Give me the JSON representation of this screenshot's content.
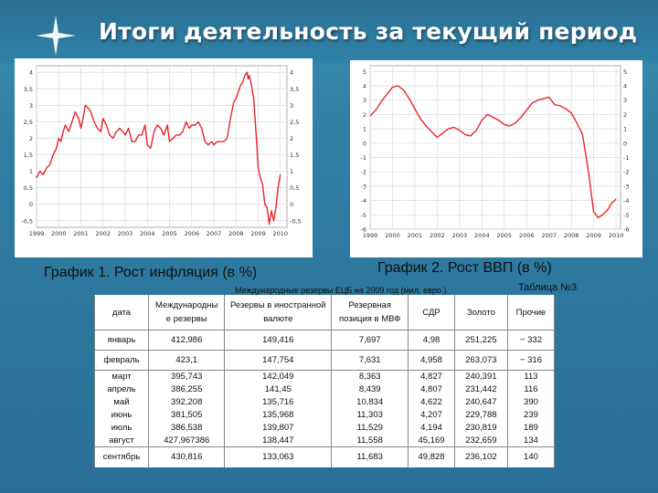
{
  "slide": {
    "title": "Итоги деятельность за текущий период",
    "colors": {
      "background": "#2f7ea3",
      "line": "#e8262a"
    }
  },
  "chart_data": [
    {
      "type": "line",
      "caption": "График 1. Рост инфляция (в %)",
      "x_tick_labels": [
        "1999",
        "2000",
        "2001",
        "2002",
        "2003",
        "2004",
        "2005",
        "2006",
        "2007",
        "2008",
        "2009",
        "2010"
      ],
      "y_tick_labels": [
        "4",
        "3,5",
        "3",
        "2,5",
        "2",
        "1,5",
        "1",
        "0,5",
        "0",
        "-0,5"
      ],
      "ylim": [
        -0.7,
        4.2
      ],
      "xlim": [
        1999,
        2010.3
      ],
      "grid": true,
      "series": [
        {
          "x": [
            1999.0,
            1999.15,
            1999.3,
            1999.45,
            1999.6,
            1999.75,
            1999.9,
            2000.0,
            2000.1,
            2000.2,
            2000.3,
            2000.45,
            2000.6,
            2000.75,
            2000.9,
            2001.0,
            2001.1,
            2001.2,
            2001.35,
            2001.45,
            2001.6,
            2001.75,
            2001.9,
            2002.0,
            2002.15,
            2002.3,
            2002.45,
            2002.6,
            2002.75,
            2002.9,
            2003.0,
            2003.15,
            2003.3,
            2003.45,
            2003.6,
            2003.75,
            2003.9,
            2004.0,
            2004.15,
            2004.3,
            2004.45,
            2004.6,
            2004.75,
            2004.9,
            2005.0,
            2005.15,
            2005.3,
            2005.45,
            2005.6,
            2005.75,
            2005.9,
            2006.0,
            2006.15,
            2006.3,
            2006.45,
            2006.6,
            2006.75,
            2006.9,
            2007.0,
            2007.15,
            2007.3,
            2007.45,
            2007.6,
            2007.75,
            2007.9,
            2008.0,
            2008.1,
            2008.2,
            2008.3,
            2008.4,
            2008.5,
            2008.55,
            2008.6,
            2008.7,
            2008.8,
            2008.9,
            2009.0,
            2009.1,
            2009.2,
            2009.3,
            2009.4,
            2009.5,
            2009.6,
            2009.7,
            2009.8,
            2009.9,
            2010.0
          ],
          "y": [
            0.8,
            1.0,
            0.9,
            1.1,
            1.2,
            1.5,
            1.7,
            2.0,
            1.9,
            2.2,
            2.4,
            2.2,
            2.5,
            2.8,
            2.6,
            2.3,
            2.6,
            3.0,
            2.9,
            2.8,
            2.5,
            2.3,
            2.2,
            2.6,
            2.4,
            2.1,
            2.0,
            2.2,
            2.3,
            2.2,
            2.1,
            2.3,
            1.9,
            1.9,
            2.1,
            2.1,
            2.4,
            1.8,
            1.7,
            2.2,
            2.4,
            2.3,
            2.1,
            2.4,
            1.9,
            2.0,
            2.1,
            2.1,
            2.2,
            2.5,
            2.3,
            2.4,
            2.4,
            2.5,
            2.3,
            1.9,
            1.8,
            1.9,
            1.8,
            1.9,
            1.9,
            1.9,
            2.0,
            2.6,
            3.1,
            3.2,
            3.4,
            3.6,
            3.7,
            3.9,
            4.0,
            3.8,
            3.9,
            3.6,
            3.2,
            2.2,
            1.1,
            0.8,
            0.6,
            0.0,
            -0.1,
            -0.6,
            -0.2,
            -0.5,
            -0.1,
            0.5,
            0.9
          ]
        }
      ]
    },
    {
      "type": "line",
      "caption": "График 2. Рост ВВП (в %)",
      "x_tick_labels": [
        "1999",
        "2000",
        "2001",
        "2002",
        "2003",
        "2004",
        "2005",
        "2006",
        "2007",
        "2008",
        "2009",
        "2010"
      ],
      "y_tick_labels": [
        "5",
        "4",
        "3",
        "2",
        "1",
        "0",
        "-1",
        "-2",
        "-3",
        "-4",
        "-5",
        "-6"
      ],
      "ylim": [
        -6,
        5.4
      ],
      "xlim": [
        1999,
        2010.2
      ],
      "grid": true,
      "series": [
        {
          "x": [
            1999.0,
            1999.25,
            1999.5,
            1999.75,
            2000.0,
            2000.25,
            2000.5,
            2000.75,
            2001.0,
            2001.25,
            2001.5,
            2001.75,
            2002.0,
            2002.25,
            2002.5,
            2002.75,
            2003.0,
            2003.25,
            2003.5,
            2003.75,
            2004.0,
            2004.25,
            2004.5,
            2004.75,
            2005.0,
            2005.25,
            2005.5,
            2005.75,
            2006.0,
            2006.25,
            2006.5,
            2006.75,
            2007.0,
            2007.25,
            2007.5,
            2007.75,
            2008.0,
            2008.25,
            2008.5,
            2008.75,
            2009.0,
            2009.2,
            2009.4,
            2009.6,
            2009.8,
            2010.0
          ],
          "y": [
            1.9,
            2.3,
            2.9,
            3.4,
            3.9,
            4.0,
            3.7,
            3.1,
            2.4,
            1.7,
            1.2,
            0.8,
            0.4,
            0.7,
            1.0,
            1.1,
            0.9,
            0.6,
            0.5,
            0.9,
            1.6,
            2.0,
            1.8,
            1.6,
            1.3,
            1.2,
            1.4,
            1.8,
            2.3,
            2.8,
            3.0,
            3.1,
            3.2,
            2.7,
            2.6,
            2.4,
            2.1,
            1.4,
            0.6,
            -1.8,
            -4.8,
            -5.2,
            -5.0,
            -4.7,
            -4.2,
            -3.9
          ]
        }
      ]
    },
    {
      "type": "table",
      "title": "Международные резервы ЕЦБ на 2009 год (мил. евро )",
      "table_number": "Таблица №3",
      "columns": [
        [
          "дата"
        ],
        [
          "Международны",
          "е резервы"
        ],
        [
          "Резервы в иностранной",
          "валюте"
        ],
        [
          "Резервная",
          "позиция в МВФ"
        ],
        [
          "СДР"
        ],
        [
          "Золото"
        ],
        [
          "Прочие"
        ]
      ],
      "groups": [
        [
          [
            "январь",
            "412,986",
            "149,416",
            "7,697",
            "4,98",
            "251,225",
            "− 332"
          ]
        ],
        [
          [
            "февраль",
            "423,1",
            "147,754",
            "7,631",
            "4,958",
            "263,073",
            "− 316"
          ]
        ],
        [
          [
            "март",
            "395,743",
            "142,049",
            "8,363",
            "4,827",
            "240,391",
            "113"
          ],
          [
            "апрель",
            "386,255",
            "141,45",
            "8,439",
            "4,807",
            "231,442",
            "116"
          ],
          [
            "май",
            "392,208",
            "135,716",
            "10,834",
            "4,622",
            "240,647",
            "390"
          ],
          [
            "июнь",
            "381,505",
            "135,968",
            "11,303",
            "4,207",
            "229,788",
            "239"
          ],
          [
            "июль",
            "386,538",
            "139,807",
            "11,529",
            "4,194",
            "230,819",
            "189"
          ],
          [
            "август",
            "427,967386",
            "138,447",
            "11,558",
            "45,169",
            "232,659",
            "134"
          ]
        ],
        [
          [
            "сентябрь",
            "430,816",
            "133,063",
            "11,683",
            "49,828",
            "236,102",
            "140"
          ]
        ]
      ]
    }
  ]
}
